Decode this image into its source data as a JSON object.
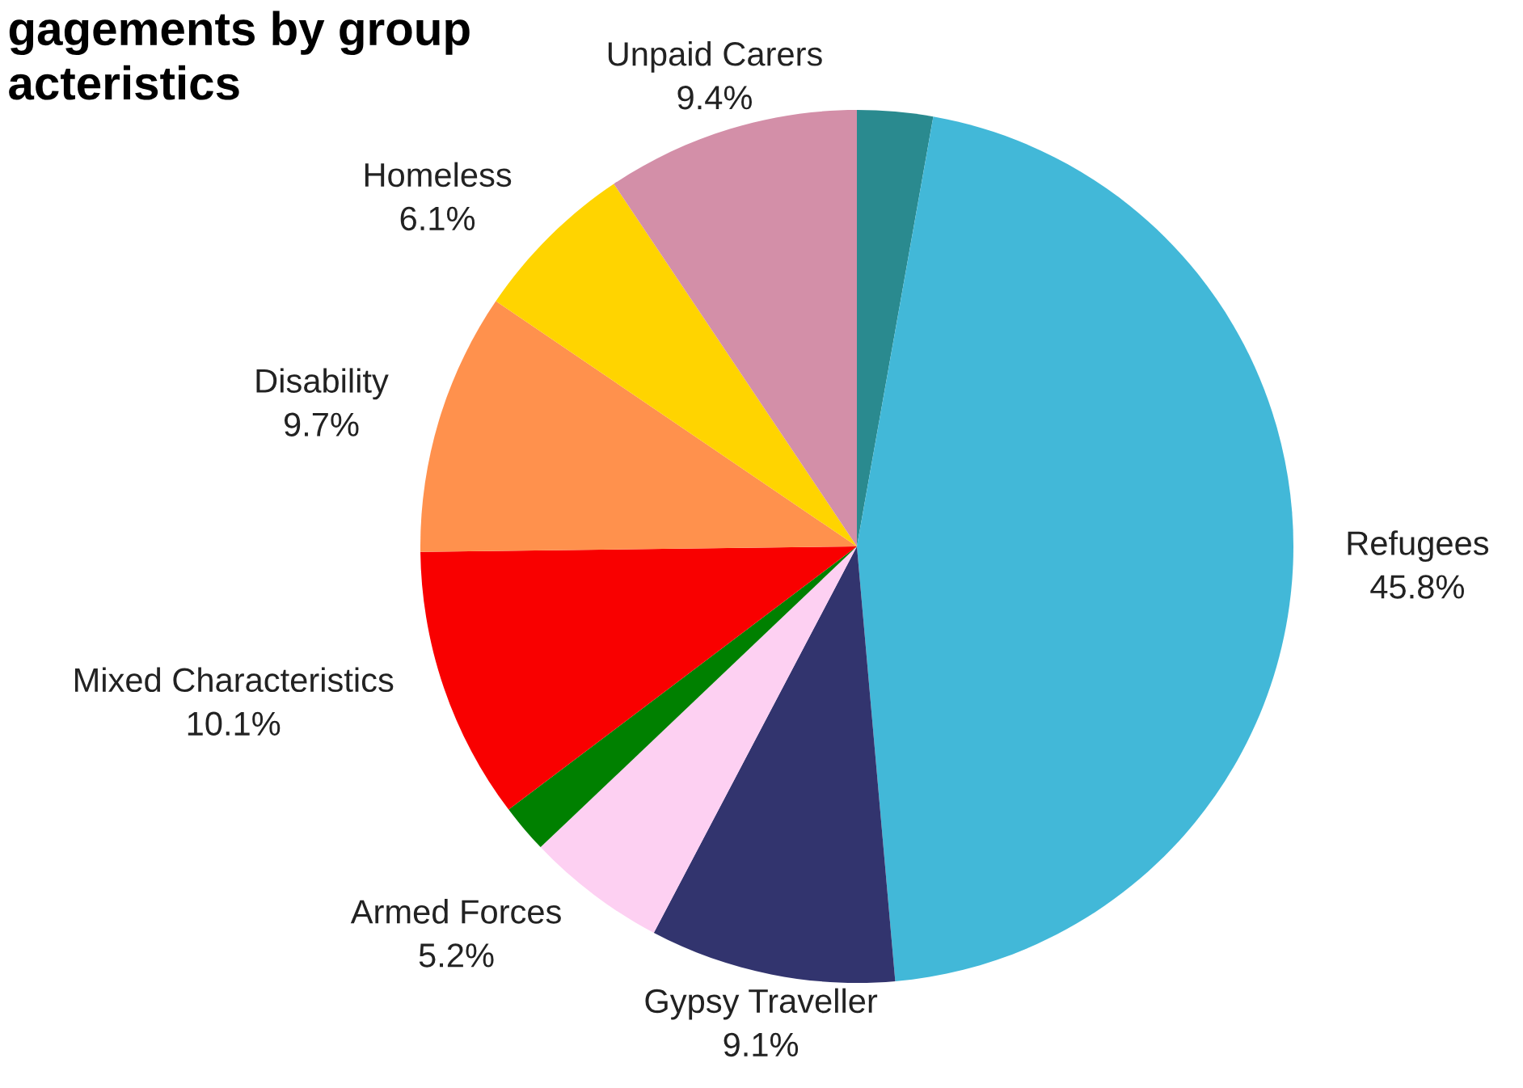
{
  "chart_data": {
    "type": "pie",
    "title": "gagements by group\nacteristics",
    "categories": [
      null,
      "Refugees",
      "Gypsy Traveller",
      "Armed Forces",
      null,
      "Mixed Characteristics",
      "Disability",
      "Homeless",
      "Unpaid Carers"
    ],
    "values": [
      2.8,
      45.8,
      9.1,
      5.2,
      1.8,
      10.1,
      9.7,
      6.1,
      9.4
    ],
    "value_labels": [
      null,
      "45.8%",
      "9.1%",
      "5.2%",
      null,
      "10.1%",
      "9.7%",
      "6.1%",
      "9.4%"
    ],
    "colors": [
      "#2a8a8f",
      "#42b8d8",
      "#32346e",
      "#fdd0f2",
      "#008000",
      "#f90000",
      "#ff914d",
      "#ffd400",
      "#d38fa8"
    ],
    "legend": false
  }
}
